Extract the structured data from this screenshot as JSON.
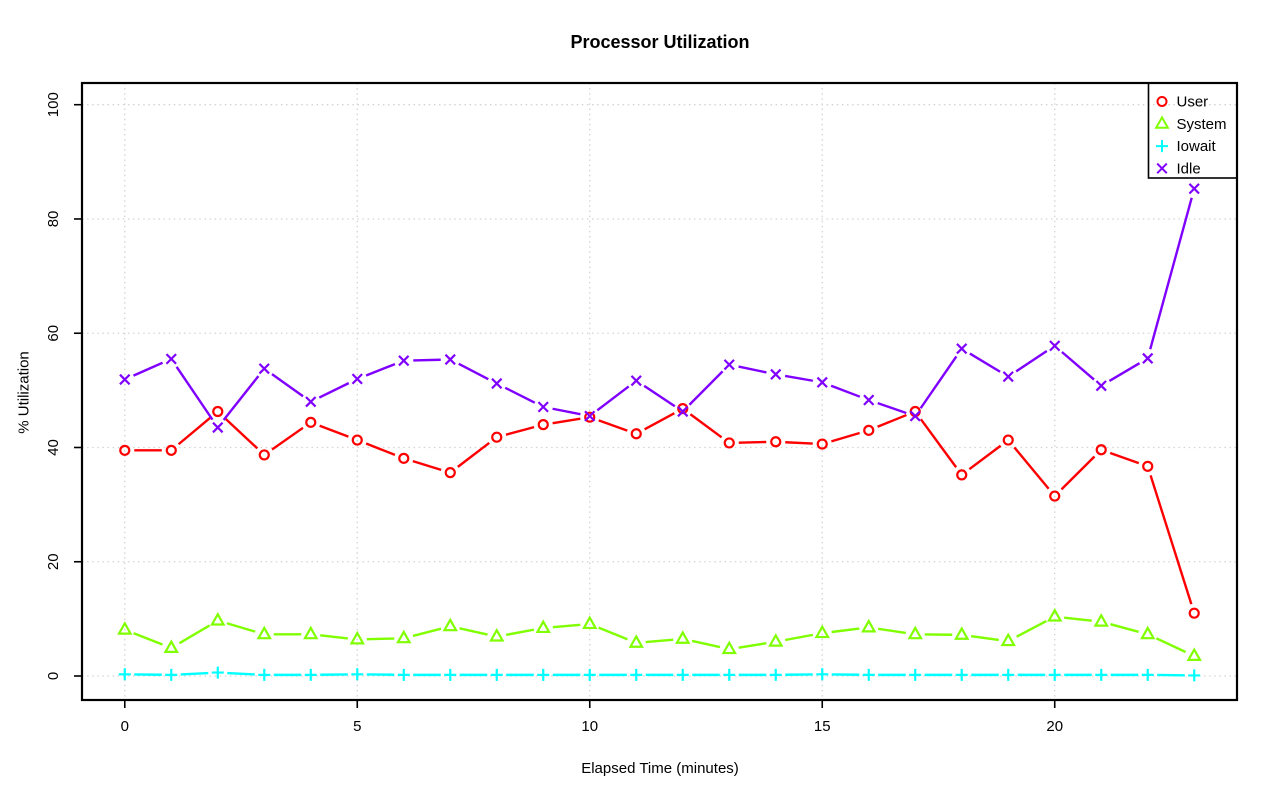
{
  "chart_data": {
    "type": "line",
    "title": "Processor Utilization",
    "xlabel": "Elapsed Time (minutes)",
    "ylabel": "% Utilization",
    "x": [
      0,
      1,
      2,
      3,
      4,
      5,
      6,
      7,
      8,
      9,
      10,
      11,
      12,
      13,
      14,
      15,
      16,
      17,
      18,
      19,
      20,
      21,
      22,
      23
    ],
    "xticks": [
      0,
      5,
      10,
      15,
      20
    ],
    "xtick_labels": [
      "0",
      "5",
      "10",
      "15",
      "20"
    ],
    "yticks": [
      0,
      20,
      40,
      60,
      80,
      100
    ],
    "ytick_labels": [
      "0",
      "20",
      "40",
      "60",
      "80",
      "100"
    ],
    "xlim": [
      -0.92,
      23.92
    ],
    "ylim": [
      -4.2,
      103.8
    ],
    "grid": {
      "style": "dotted",
      "color": "#D3D3D3",
      "x_at_ticks": true,
      "y_at_ticks": true
    },
    "legend": {
      "position": "topright",
      "entries": [
        {
          "label": "User",
          "marker": "open-circle",
          "color": "#FF0000"
        },
        {
          "label": "System",
          "marker": "open-triangle",
          "color": "#80FF00"
        },
        {
          "label": "Iowait",
          "marker": "plus",
          "color": "#00FFFF"
        },
        {
          "label": "Idle",
          "marker": "cross",
          "color": "#8000FF"
        }
      ]
    },
    "series": [
      {
        "name": "User",
        "marker": "open-circle",
        "color": "#FF0000",
        "values": [
          39.5,
          39.5,
          46.3,
          38.7,
          44.4,
          41.3,
          38.1,
          35.6,
          41.8,
          44.0,
          45.3,
          42.4,
          46.8,
          40.8,
          41.0,
          40.6,
          43.0,
          46.3,
          35.2,
          41.3,
          31.5,
          39.6,
          36.7,
          11.0
        ]
      },
      {
        "name": "System",
        "marker": "open-triangle",
        "color": "#80FF00",
        "values": [
          8.1,
          4.9,
          9.7,
          7.3,
          7.3,
          6.4,
          6.6,
          8.7,
          6.9,
          8.4,
          9.1,
          5.8,
          6.5,
          4.7,
          6.0,
          7.5,
          8.5,
          7.3,
          7.2,
          6.1,
          10.4,
          9.5,
          7.3,
          3.5
        ]
      },
      {
        "name": "Iowait",
        "marker": "plus",
        "color": "#00FFFF",
        "values": [
          0.3,
          0.2,
          0.6,
          0.2,
          0.2,
          0.3,
          0.2,
          0.2,
          0.2,
          0.2,
          0.2,
          0.2,
          0.2,
          0.2,
          0.2,
          0.3,
          0.2,
          0.2,
          0.2,
          0.2,
          0.2,
          0.2,
          0.2,
          0.1
        ]
      },
      {
        "name": "Idle",
        "marker": "cross",
        "color": "#8000FF",
        "values": [
          51.9,
          55.5,
          43.5,
          53.8,
          48.0,
          52.0,
          55.2,
          55.4,
          51.2,
          47.1,
          45.5,
          51.7,
          46.3,
          54.5,
          52.8,
          51.4,
          48.3,
          45.5,
          57.3,
          52.4,
          57.8,
          50.8,
          55.6,
          85.3
        ]
      }
    ]
  }
}
